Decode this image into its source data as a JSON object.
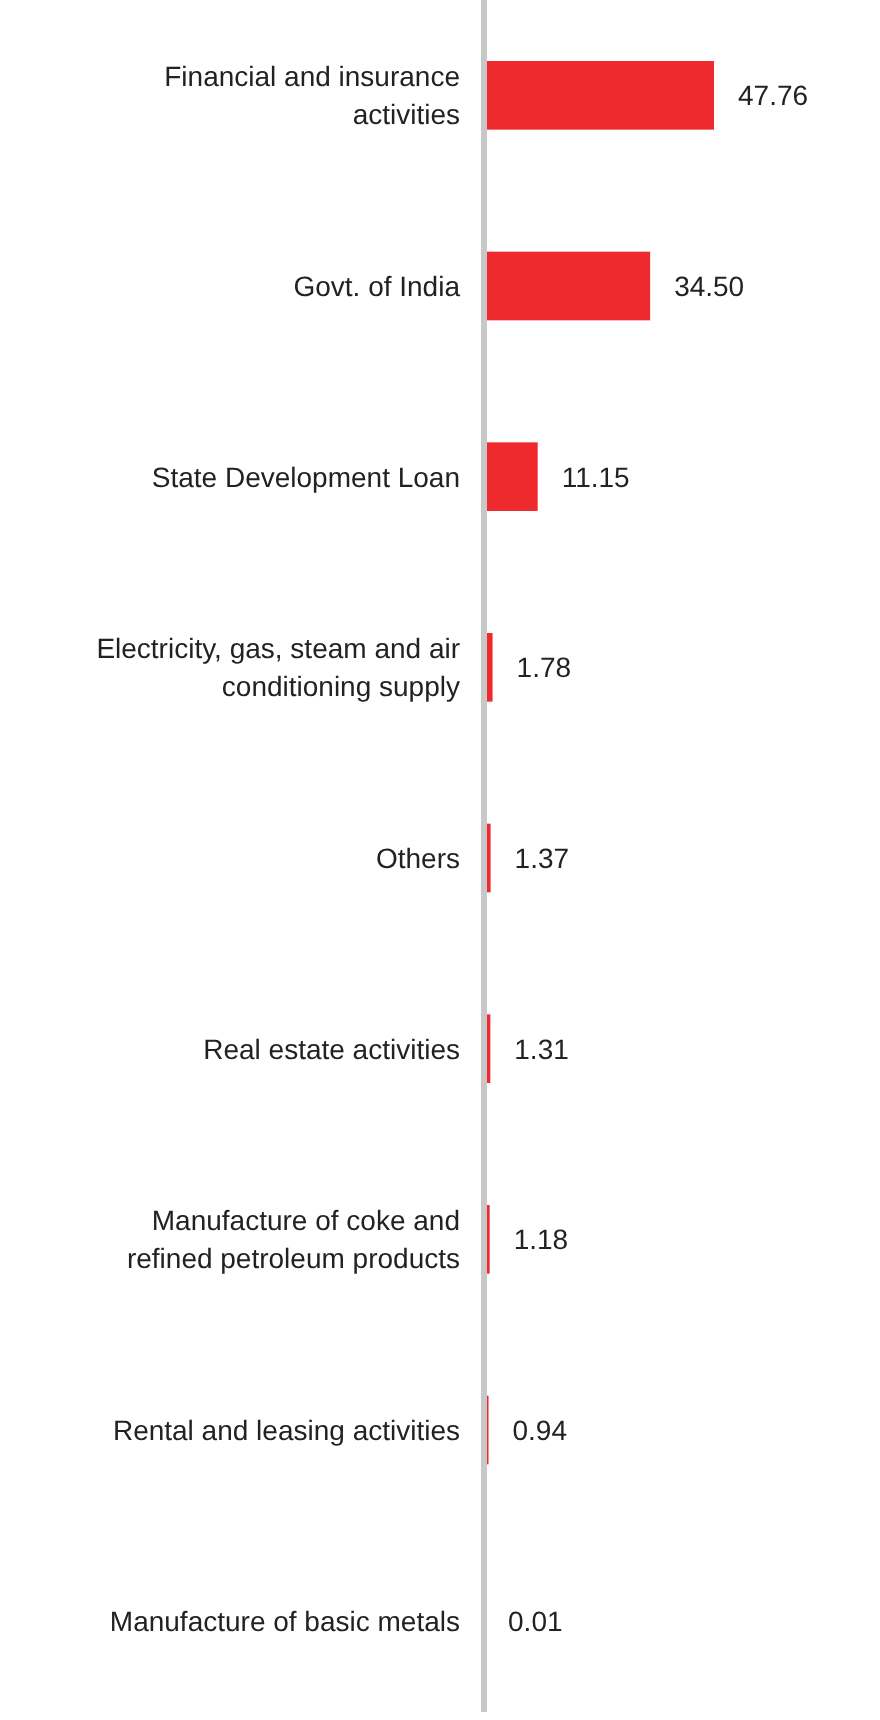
{
  "chart_data": {
    "type": "bar",
    "orientation": "horizontal",
    "categories": [
      "Financial and insurance activities",
      "Govt. of India",
      "State Development Loan",
      "Electricity, gas, steam and air conditioning supply",
      "Others",
      "Real estate activities",
      "Manufacture of coke and refined petroleum products",
      "Rental and leasing activities",
      "Manufacture of basic metals"
    ],
    "values": [
      47.76,
      34.5,
      11.15,
      1.78,
      1.37,
      1.31,
      1.18,
      0.94,
      0.01
    ],
    "value_labels": [
      "47.76",
      "34.50",
      "11.15",
      "1.78",
      "1.37",
      "1.31",
      "1.18",
      "0.94",
      "0.01"
    ],
    "color": "#ee2a2f"
  }
}
